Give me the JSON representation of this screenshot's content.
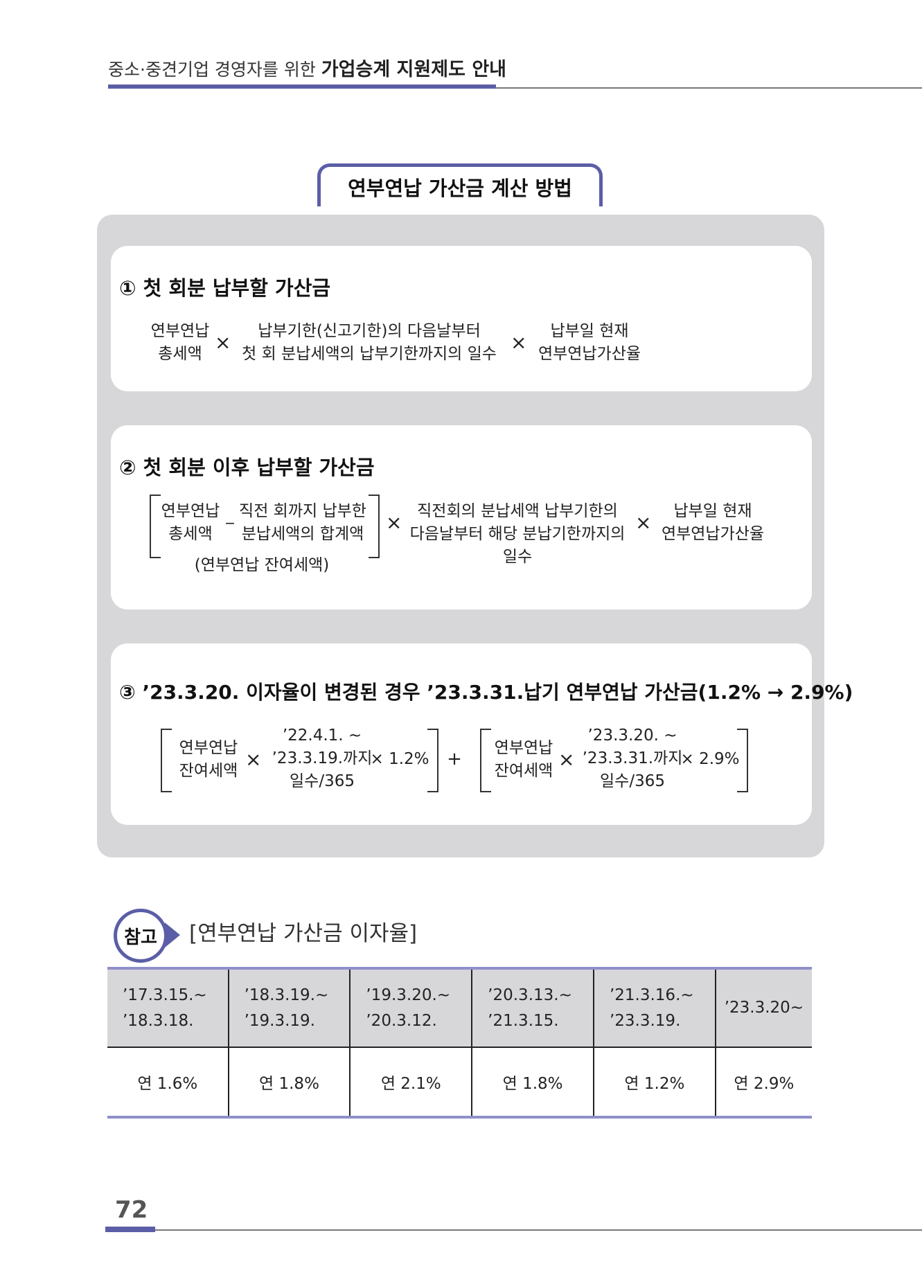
{
  "header": {
    "subtitle": "중소·중견기업 경영자를 위한",
    "title": "가업승계 지원제도 안내"
  },
  "section_title": "연부연납 가산금 계산 방법",
  "card1": {
    "title": "① 첫 회분 납부할 가산금",
    "term1": [
      "연부연납",
      "총세액"
    ],
    "op1": "×",
    "term2": [
      "납부기한(신고기한)의 다음날부터",
      "첫 회 분납세액의 납부기한까지의 일수"
    ],
    "op2": "×",
    "term3": [
      "납부일 현재",
      "연부연납가산율"
    ]
  },
  "card2": {
    "title": "② 첫 회분 이후 납부할 가산금",
    "term1": [
      "연부연납",
      "총세액"
    ],
    "minus": "_",
    "term2": [
      "직전 회까지 납부한",
      "분납세액의 합계액"
    ],
    "note": "(연부연납 잔여세액)",
    "op1": "×",
    "term3": [
      "직전회의 분납세액 납부기한의",
      "다음날부터 해당 분납기한까지의",
      "일수"
    ],
    "op2": "×",
    "term4": [
      "납부일 현재",
      "연부연납가산율"
    ]
  },
  "card3": {
    "title": "③ ’23.3.20. 이자율이 변경된 경우 ’23.3.31.납기 연부연납 가산금(1.2% → 2.9%)",
    "left": {
      "term": [
        "연부연납",
        "잔여세액"
      ],
      "op": "×",
      "days": [
        "’22.4.1. ~",
        "’23.3.19.까지",
        "일수/365"
      ],
      "rate": "× 1.2%"
    },
    "plus": "+",
    "right": {
      "term": [
        "연부연납",
        "잔여세액"
      ],
      "op": "×",
      "days": [
        "’23.3.20. ~",
        "’23.3.31.까지",
        "일수/365"
      ],
      "rate": "× 2.9%"
    }
  },
  "reference": {
    "badge": "참고",
    "title": "[연부연납 가산금 이자율]",
    "periods": [
      [
        "’17.3.15.~",
        "’18.3.18."
      ],
      [
        "’18.3.19.~",
        "’19.3.19."
      ],
      [
        "’19.3.20.~",
        "’20.3.12."
      ],
      [
        "’20.3.13.~",
        "’21.3.15."
      ],
      [
        "’21.3.16.~",
        "’23.3.19."
      ],
      [
        "’23.3.20~"
      ]
    ],
    "rates": [
      "연 1.6%",
      "연 1.8%",
      "연 2.1%",
      "연 1.8%",
      "연 1.2%",
      "연 2.9%"
    ]
  },
  "page_number": "72",
  "colors": {
    "accent": "#5b5ea6",
    "panel": "#d7d7d9",
    "table_rule": "#8f90c9"
  }
}
